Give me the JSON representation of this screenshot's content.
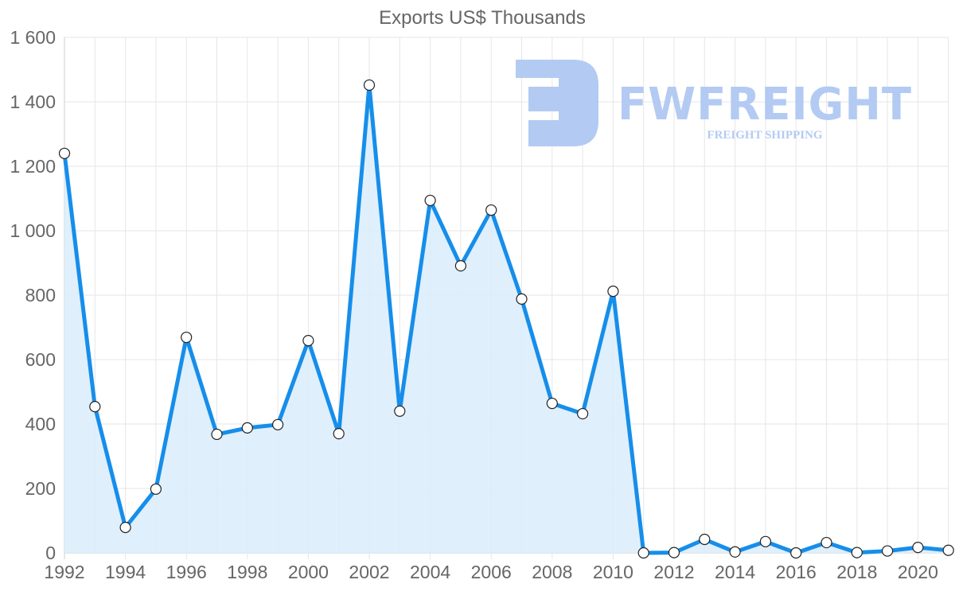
{
  "chart_data": {
    "type": "line",
    "title": "Exports US$ Thousands",
    "xlabel": "",
    "ylabel": "",
    "x": [
      1992,
      1993,
      1994,
      1995,
      1996,
      1997,
      1998,
      1999,
      2000,
      2001,
      2002,
      2003,
      2004,
      2005,
      2006,
      2007,
      2008,
      2009,
      2010,
      2011,
      2012,
      2013,
      2014,
      2015,
      2016,
      2017,
      2018,
      2019,
      2020,
      2021
    ],
    "series": [
      {
        "name": "Exports US$ Thousands",
        "values": [
          1240,
          454,
          79,
          198,
          669,
          368,
          388,
          398,
          659,
          370,
          1452,
          440,
          1094,
          891,
          1064,
          788,
          464,
          432,
          812,
          0,
          1,
          42,
          3,
          35,
          0,
          32,
          1,
          6,
          17,
          8
        ],
        "color": "#168eea",
        "fill": "#d9ecfc"
      }
    ],
    "ylim": [
      0,
      1600
    ],
    "yticks": [
      0,
      200,
      400,
      600,
      800,
      1000,
      1200,
      1400,
      1600
    ],
    "ytick_labels": [
      "0",
      "200",
      "400",
      "600",
      "800",
      "1 000",
      "1 200",
      "1 400",
      "1 600"
    ],
    "xtick_labels": [
      "1992",
      "1994",
      "1996",
      "1998",
      "2000",
      "2002",
      "2004",
      "2006",
      "2008",
      "2010",
      "2012",
      "2014",
      "2016",
      "2018",
      "2020"
    ],
    "grid": true,
    "legend": "none",
    "filled_area": true
  },
  "watermark": {
    "brand": "FWFREIGHT",
    "tagline": "FREIGHT SHIPPING",
    "color": "#b3cbf2"
  }
}
